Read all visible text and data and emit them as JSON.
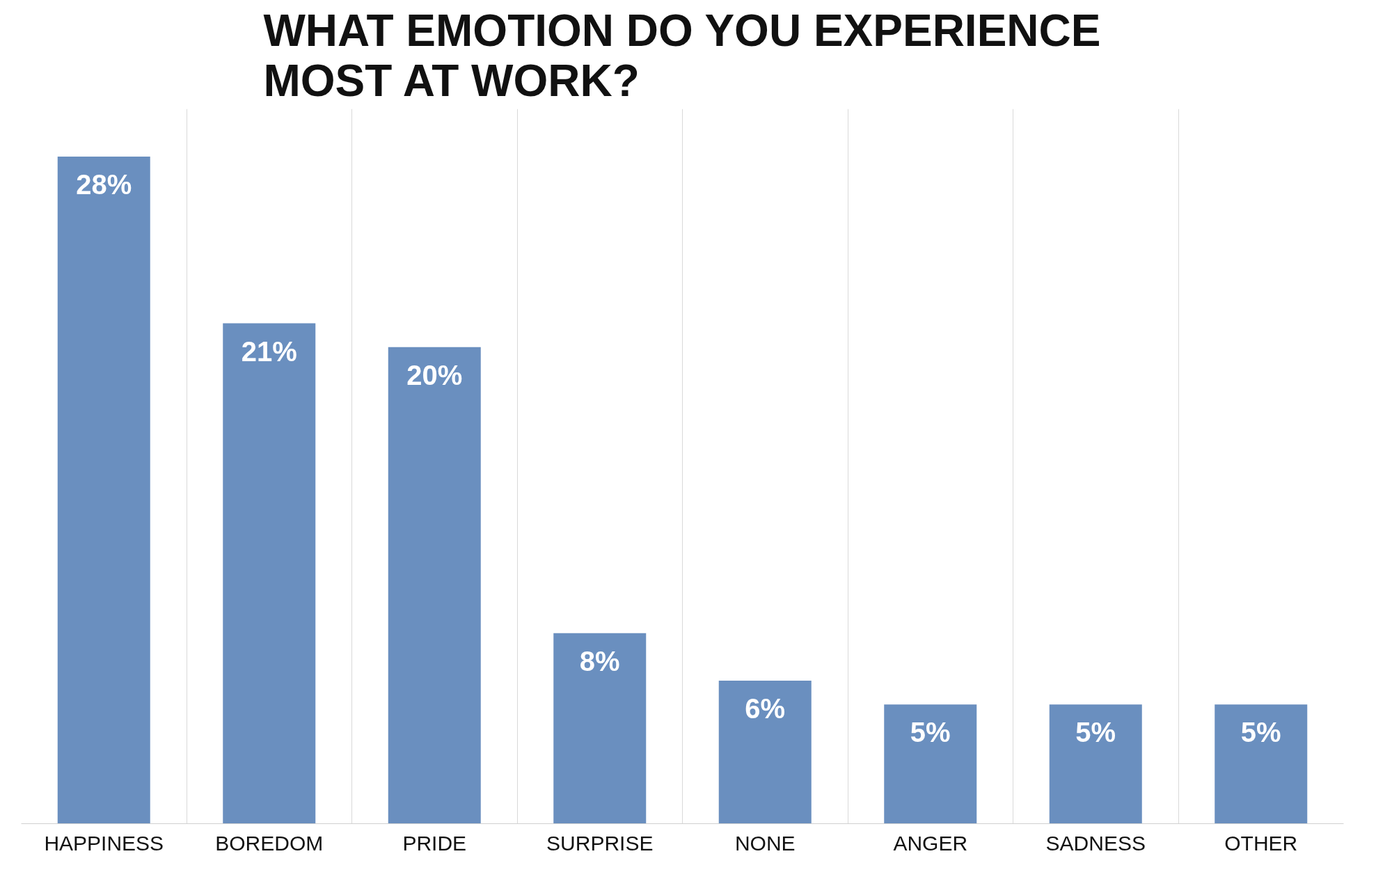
{
  "chart_data": {
    "type": "bar",
    "title": "WHAT EMOTION DO YOU EXPERIENCE MOST AT WORK?",
    "categories": [
      "HAPPINESS",
      "BOREDOM",
      "PRIDE",
      "SURPRISE",
      "NONE",
      "ANGER",
      "SADNESS",
      "OTHER"
    ],
    "values": [
      28,
      21,
      20,
      8,
      6,
      5,
      5,
      5
    ],
    "color": "#6a8fbf",
    "value_labels": [
      "28%",
      "21%",
      "20%",
      "8%",
      "6%",
      "5%",
      "5%",
      "5%"
    ],
    "ylim": [
      0,
      30
    ],
    "grid": "x",
    "tick_labels": "x"
  }
}
